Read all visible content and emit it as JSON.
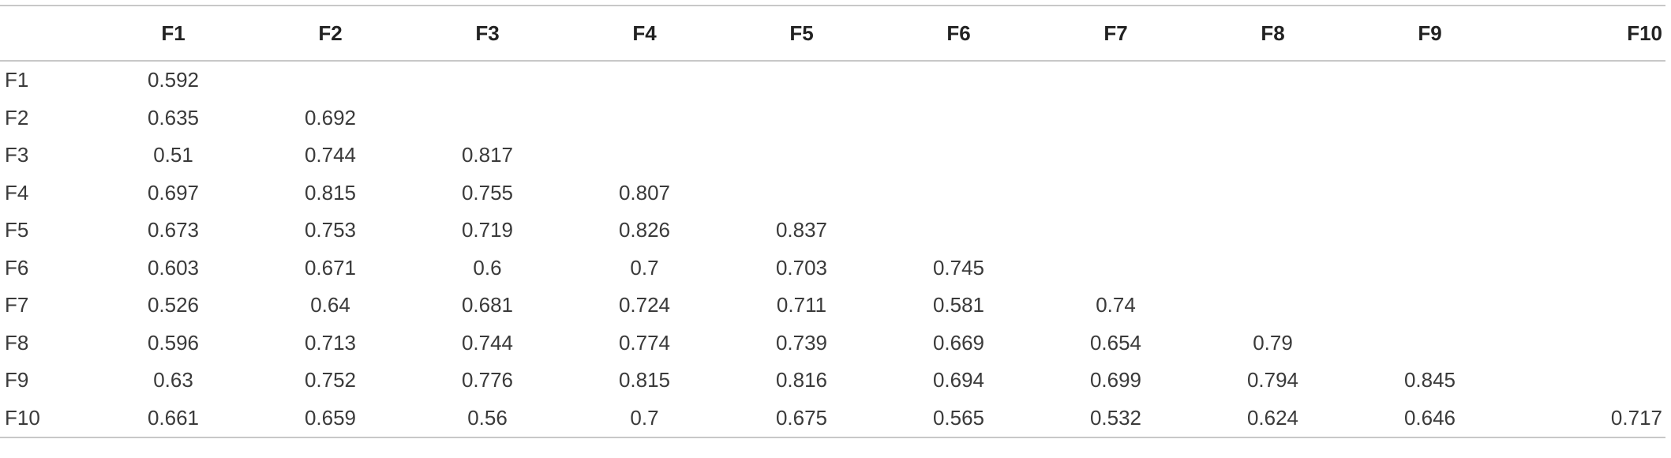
{
  "table": {
    "corner": "",
    "columns": [
      "F1",
      "F2",
      "F3",
      "F4",
      "F5",
      "F6",
      "F7",
      "F8",
      "F9",
      "F10"
    ],
    "rows": [
      {
        "label": "F1",
        "cells": [
          "0.592",
          "",
          "",
          "",
          "",
          "",
          "",
          "",
          "",
          ""
        ]
      },
      {
        "label": "F2",
        "cells": [
          "0.635",
          "0.692",
          "",
          "",
          "",
          "",
          "",
          "",
          "",
          ""
        ]
      },
      {
        "label": "F3",
        "cells": [
          "0.51",
          "0.744",
          "0.817",
          "",
          "",
          "",
          "",
          "",
          "",
          ""
        ]
      },
      {
        "label": "F4",
        "cells": [
          "0.697",
          "0.815",
          "0.755",
          "0.807",
          "",
          "",
          "",
          "",
          "",
          ""
        ]
      },
      {
        "label": "F5",
        "cells": [
          "0.673",
          "0.753",
          "0.719",
          "0.826",
          "0.837",
          "",
          "",
          "",
          "",
          ""
        ]
      },
      {
        "label": "F6",
        "cells": [
          "0.603",
          "0.671",
          "0.6",
          "0.7",
          "0.703",
          "0.745",
          "",
          "",
          "",
          ""
        ]
      },
      {
        "label": "F7",
        "cells": [
          "0.526",
          "0.64",
          "0.681",
          "0.724",
          "0.711",
          "0.581",
          "0.74",
          "",
          "",
          ""
        ]
      },
      {
        "label": "F8",
        "cells": [
          "0.596",
          "0.713",
          "0.744",
          "0.774",
          "0.739",
          "0.669",
          "0.654",
          "0.79",
          "",
          ""
        ]
      },
      {
        "label": "F9",
        "cells": [
          "0.63",
          "0.752",
          "0.776",
          "0.815",
          "0.816",
          "0.694",
          "0.699",
          "0.794",
          "0.845",
          ""
        ]
      },
      {
        "label": "F10",
        "cells": [
          "0.661",
          "0.659",
          "0.56",
          "0.7",
          "0.675",
          "0.565",
          "0.532",
          "0.624",
          "0.646",
          "0.717"
        ]
      }
    ]
  }
}
